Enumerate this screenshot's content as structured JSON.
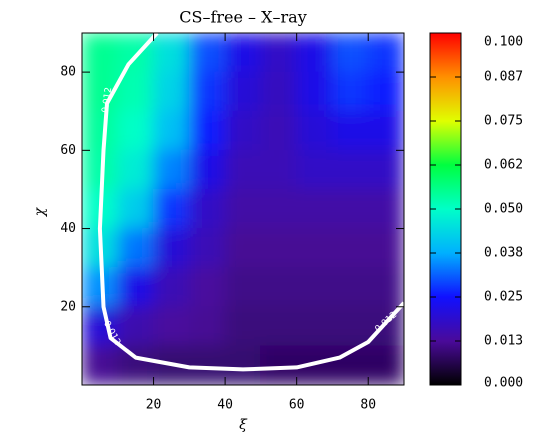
{
  "chart_data": {
    "type": "heatmap",
    "title": "CS–free – X–ray",
    "x_label": "ξ",
    "y_label": "χ",
    "xlim": [
      0,
      90
    ],
    "ylim": [
      0,
      90
    ],
    "xticks": [
      20,
      40,
      60,
      80
    ],
    "yticks": [
      20,
      40,
      60,
      80
    ],
    "x": [
      5,
      15,
      25,
      35,
      45,
      55,
      65,
      75,
      85
    ],
    "y": [
      85,
      75,
      65,
      55,
      45,
      35,
      25,
      15,
      5
    ],
    "z": [
      [
        0.055,
        0.053,
        0.045,
        0.03,
        0.022,
        0.018,
        0.022,
        0.03,
        0.028
      ],
      [
        0.055,
        0.052,
        0.043,
        0.028,
        0.02,
        0.017,
        0.022,
        0.028,
        0.026
      ],
      [
        0.054,
        0.05,
        0.04,
        0.026,
        0.018,
        0.016,
        0.02,
        0.022,
        0.022
      ],
      [
        0.053,
        0.047,
        0.034,
        0.022,
        0.016,
        0.016,
        0.018,
        0.018,
        0.018
      ],
      [
        0.05,
        0.042,
        0.028,
        0.018,
        0.014,
        0.014,
        0.014,
        0.014,
        0.014
      ],
      [
        0.045,
        0.033,
        0.02,
        0.016,
        0.012,
        0.012,
        0.012,
        0.012,
        0.012
      ],
      [
        0.035,
        0.022,
        0.016,
        0.013,
        0.011,
        0.011,
        0.011,
        0.011,
        0.011
      ],
      [
        0.02,
        0.015,
        0.013,
        0.012,
        0.01,
        0.01,
        0.01,
        0.01,
        0.01
      ],
      [
        0.012,
        0.01,
        0.009,
        0.009,
        0.009,
        0.008,
        0.008,
        0.008,
        0.008
      ]
    ],
    "clim": [
      0,
      0.1
    ],
    "colormap": [
      "#000000",
      "#4a0a9a",
      "#1010ff",
      "#00b0ff",
      "#00ffc8",
      "#00ff40",
      "#e0ff00",
      "#ff9000",
      "#ff0000"
    ],
    "cticks": [
      {
        "value": 0.1,
        "label": "0.100"
      },
      {
        "value": 0.0875,
        "label": "0.087"
      },
      {
        "value": 0.075,
        "label": "0.075"
      },
      {
        "value": 0.0625,
        "label": "0.062"
      },
      {
        "value": 0.05,
        "label": "0.050"
      },
      {
        "value": 0.0375,
        "label": "0.038"
      },
      {
        "value": 0.025,
        "label": "0.025"
      },
      {
        "value": 0.0125,
        "label": "0.013"
      },
      {
        "value": 0,
        "label": "0.000"
      }
    ],
    "contour": {
      "level": 0.012,
      "color": "#ffffff",
      "x": [
        21,
        13,
        7,
        6,
        5,
        6,
        8,
        15,
        30,
        45,
        60,
        72,
        80,
        85,
        90
      ],
      "y": [
        90,
        82,
        72,
        60,
        40,
        20,
        12,
        7,
        4.5,
        4,
        4.5,
        7,
        11,
        16,
        21
      ]
    }
  }
}
